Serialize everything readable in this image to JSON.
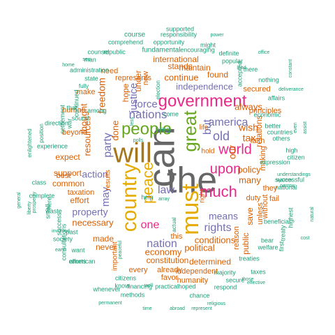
{
  "palette": {
    "green": "#1b9e77",
    "orange": "#d95f02",
    "purple": "#7570b3",
    "pink": "#e7298a",
    "lime": "#66a61e",
    "gold": "#e6ab02",
    "brown": "#a6761d",
    "gray": "#666666"
  },
  "words": [
    {
      "text": "the",
      "weight": 10,
      "color": "gray"
    },
    {
      "text": "can",
      "weight": 10,
      "color": "gray"
    },
    {
      "text": "will",
      "weight": 9,
      "color": "brown"
    },
    {
      "text": "must",
      "weight": 8,
      "color": "gold"
    },
    {
      "text": "country",
      "weight": 8,
      "color": "gold"
    },
    {
      "text": "great",
      "weight": 7,
      "color": "lime"
    },
    {
      "text": "government",
      "weight": 7,
      "color": "pink"
    },
    {
      "text": "people",
      "weight": 7,
      "color": "lime"
    },
    {
      "text": "peace",
      "weight": 6,
      "color": "gold"
    },
    {
      "text": "much",
      "weight": 6,
      "color": "pink"
    },
    {
      "text": "upon",
      "weight": 6,
      "color": "pink"
    },
    {
      "text": "world",
      "weight": 6,
      "color": "pink"
    },
    {
      "text": "nations",
      "weight": 5,
      "color": "purple"
    },
    {
      "text": "america",
      "weight": 5,
      "color": "purple"
    },
    {
      "text": "law",
      "weight": 5,
      "color": "purple"
    },
    {
      "text": "one",
      "weight": 5,
      "color": "pink"
    },
    {
      "text": "rights",
      "weight": 5,
      "color": "purple"
    },
    {
      "text": "old",
      "weight": 5,
      "color": "purple"
    },
    {
      "text": "nation",
      "weight": 5,
      "color": "purple"
    },
    {
      "text": "but",
      "weight": 5,
      "color": "purple"
    },
    {
      "text": "party",
      "weight": 4,
      "color": "purple"
    },
    {
      "text": "justice",
      "weight": 4,
      "color": "purple"
    },
    {
      "text": "force",
      "weight": 4,
      "color": "purple"
    },
    {
      "text": "may",
      "weight": 4,
      "color": "purple"
    },
    {
      "text": "property",
      "weight": 4,
      "color": "purple"
    },
    {
      "text": "independence",
      "weight": 4,
      "color": "purple"
    },
    {
      "text": "action",
      "weight": 4,
      "color": "purple"
    },
    {
      "text": "means",
      "weight": 4,
      "color": "purple"
    },
    {
      "text": "wish",
      "weight": 4,
      "color": "orange"
    },
    {
      "text": "our",
      "weight": 4,
      "color": "orange"
    },
    {
      "text": "policy",
      "weight": 4,
      "color": "orange"
    },
    {
      "text": "thought",
      "weight": 4,
      "color": "orange"
    },
    {
      "text": "freedom",
      "weight": 4,
      "color": "orange"
    },
    {
      "text": "continue",
      "weight": 4,
      "color": "orange"
    },
    {
      "text": "necessary",
      "weight": 4,
      "color": "orange"
    },
    {
      "text": "political",
      "weight": 4,
      "color": "orange"
    },
    {
      "text": "conditions",
      "weight": 4,
      "color": "orange"
    },
    {
      "text": "economy",
      "weight": 4,
      "color": "orange"
    },
    {
      "text": "resources",
      "weight": 4,
      "color": "orange"
    },
    {
      "text": "always",
      "weight": 4,
      "color": "orange"
    },
    {
      "text": "many",
      "weight": 4,
      "color": "orange"
    },
    {
      "text": "tax",
      "weight": 4,
      "color": "orange"
    },
    {
      "text": "done",
      "weight": 4,
      "color": "orange"
    },
    {
      "text": "made",
      "weight": 3,
      "color": "orange"
    },
    {
      "text": "international",
      "weight": 3,
      "color": "orange"
    },
    {
      "text": "stands",
      "weight": 3,
      "color": "orange"
    },
    {
      "text": "maintain",
      "weight": 3,
      "color": "orange"
    },
    {
      "text": "found",
      "weight": 3,
      "color": "orange"
    },
    {
      "text": "represents",
      "weight": 3,
      "color": "orange"
    },
    {
      "text": "secured",
      "weight": 3,
      "color": "orange"
    },
    {
      "text": "support",
      "weight": 3,
      "color": "orange"
    },
    {
      "text": "expect",
      "weight": 3,
      "color": "orange"
    },
    {
      "text": "common",
      "weight": 3,
      "color": "orange"
    },
    {
      "text": "effort",
      "weight": 3,
      "color": "orange"
    },
    {
      "text": "never",
      "weight": 3,
      "color": "orange"
    },
    {
      "text": "constitution",
      "weight": 3,
      "color": "orange"
    },
    {
      "text": "determined",
      "weight": 3,
      "color": "orange"
    },
    {
      "text": "hope",
      "weight": 3,
      "color": "orange"
    },
    {
      "text": "under",
      "weight": 3,
      "color": "orange"
    },
    {
      "text": "new",
      "weight": 3,
      "color": "orange"
    },
    {
      "text": "save",
      "weight": 3,
      "color": "orange"
    },
    {
      "text": "public",
      "weight": 3,
      "color": "orange"
    },
    {
      "text": "reason",
      "weight": 3,
      "color": "orange"
    },
    {
      "text": "they",
      "weight": 3,
      "color": "orange"
    },
    {
      "text": "duty",
      "weight": 3,
      "color": "orange"
    },
    {
      "text": "fail",
      "weight": 3,
      "color": "orange"
    },
    {
      "text": "without",
      "weight": 3,
      "color": "orange"
    },
    {
      "text": "unless",
      "weight": 3,
      "color": "orange"
    },
    {
      "text": "principles",
      "weight": 3,
      "color": "orange"
    },
    {
      "text": "relations",
      "weight": 3,
      "color": "orange"
    },
    {
      "text": "faith",
      "weight": 3,
      "color": "orange"
    },
    {
      "text": "making",
      "weight": 3,
      "color": "orange"
    },
    {
      "text": "every",
      "weight": 3,
      "color": "orange"
    },
    {
      "text": "already",
      "weight": 3,
      "color": "orange"
    },
    {
      "text": "favor",
      "weight": 3,
      "color": "orange"
    },
    {
      "text": "humanity",
      "weight": 3,
      "color": "orange"
    },
    {
      "text": "independent",
      "weight": 3,
      "color": "orange"
    },
    {
      "text": "important",
      "weight": 3,
      "color": "orange"
    },
    {
      "text": "results",
      "weight": 3,
      "color": "orange"
    },
    {
      "text": "best",
      "weight": 3,
      "color": "orange"
    },
    {
      "text": "taxation",
      "weight": 3,
      "color": "orange"
    },
    {
      "text": "beyond",
      "weight": 3,
      "color": "orange"
    },
    {
      "text": "human",
      "weight": 3,
      "color": "orange"
    },
    {
      "text": "make",
      "weight": 3,
      "color": "orange"
    },
    {
      "text": "need",
      "weight": 3,
      "color": "orange"
    },
    {
      "text": "right",
      "weight": 3,
      "color": "orange"
    },
    {
      "text": "life",
      "weight": 3,
      "color": "orange"
    },
    {
      "text": "hold",
      "weight": 3,
      "color": "orange"
    },
    {
      "text": "this",
      "weight": 3,
      "color": "orange"
    },
    {
      "text": "course",
      "weight": 2,
      "color": "green"
    },
    {
      "text": "supported",
      "weight": 2,
      "color": "green"
    },
    {
      "text": "responsibility",
      "weight": 2,
      "color": "green"
    },
    {
      "text": "power",
      "weight": 2,
      "color": "green"
    },
    {
      "text": "comprehend",
      "weight": 1,
      "color": "green"
    },
    {
      "text": "opportunity",
      "weight": 2,
      "color": "green"
    },
    {
      "text": "might",
      "weight": 2,
      "color": "green"
    },
    {
      "text": "fundamental",
      "weight": 2,
      "color": "green"
    },
    {
      "text": "encouraging",
      "weight": 2,
      "color": "green"
    },
    {
      "text": "definite",
      "weight": 2,
      "color": "green"
    },
    {
      "text": "popular",
      "weight": 2,
      "color": "green"
    },
    {
      "text": "counsel",
      "weight": 2,
      "color": "green"
    },
    {
      "text": "republic",
      "weight": 2,
      "color": "green"
    },
    {
      "text": "man",
      "weight": 2,
      "color": "green"
    },
    {
      "text": "administration",
      "weight": 2,
      "color": "green"
    },
    {
      "text": "state",
      "weight": 2,
      "color": "green"
    },
    {
      "text": "fully",
      "weight": 2,
      "color": "green"
    },
    {
      "text": "home",
      "weight": 2,
      "color": "green"
    },
    {
      "text": "sea",
      "weight": 1,
      "color": "green"
    },
    {
      "text": "continued",
      "weight": 1,
      "color": "green"
    },
    {
      "text": "settlement",
      "weight": 2,
      "color": "green"
    },
    {
      "text": "sound",
      "weight": 2,
      "color": "green"
    },
    {
      "text": "among",
      "weight": 2,
      "color": "green"
    },
    {
      "text": "that",
      "weight": 2,
      "color": "green"
    },
    {
      "text": "war",
      "weight": 2,
      "color": "green"
    },
    {
      "text": "direction",
      "weight": 2,
      "color": "green"
    },
    {
      "text": "position",
      "weight": 2,
      "color": "green"
    },
    {
      "text": "enlightened",
      "weight": 2,
      "color": "green"
    },
    {
      "text": "experience",
      "weight": 2,
      "color": "green"
    },
    {
      "text": "class",
      "weight": 1,
      "color": "green"
    },
    {
      "text": "complete",
      "weight": 1,
      "color": "green"
    },
    {
      "text": "here",
      "weight": 2,
      "color": "green"
    },
    {
      "text": "small",
      "weight": 2,
      "color": "green"
    },
    {
      "text": "waste",
      "weight": 2,
      "color": "green"
    },
    {
      "text": "liberty",
      "weight": 2,
      "color": "green"
    },
    {
      "text": "prosperity",
      "weight": 2,
      "color": "green"
    },
    {
      "text": "general",
      "weight": 2,
      "color": "green"
    },
    {
      "text": "success",
      "weight": 1,
      "color": "green"
    },
    {
      "text": "involved",
      "weight": 1,
      "color": "green"
    },
    {
      "text": "consultations",
      "weight": 1,
      "color": "green"
    },
    {
      "text": "society",
      "weight": 2,
      "color": "green"
    },
    {
      "text": "earth",
      "weight": 1,
      "color": "green"
    },
    {
      "text": "past",
      "weight": 2,
      "color": "green"
    },
    {
      "text": "want",
      "weight": 2,
      "color": "green"
    },
    {
      "text": "efforts",
      "weight": 1,
      "color": "green"
    },
    {
      "text": "american",
      "weight": 2,
      "color": "green"
    },
    {
      "text": "peaceful",
      "weight": 2,
      "color": "green"
    },
    {
      "text": "whenever",
      "weight": 2,
      "color": "green"
    },
    {
      "text": "know",
      "weight": 2,
      "color": "green"
    },
    {
      "text": "citizens",
      "weight": 1,
      "color": "green"
    },
    {
      "text": "permanent",
      "weight": 2,
      "color": "green"
    },
    {
      "text": "methods",
      "weight": 2,
      "color": "green"
    },
    {
      "text": "well",
      "weight": 2,
      "color": "green"
    },
    {
      "text": "financing",
      "weight": 1,
      "color": "green"
    },
    {
      "text": "practical",
      "weight": 2,
      "color": "green"
    },
    {
      "text": "hoped",
      "weight": 1,
      "color": "green"
    },
    {
      "text": "time",
      "weight": 2,
      "color": "green"
    },
    {
      "text": "abroad",
      "weight": 2,
      "color": "green"
    },
    {
      "text": "chance",
      "weight": 2,
      "color": "green"
    },
    {
      "text": "religious",
      "weight": 2,
      "color": "green"
    },
    {
      "text": "represent",
      "weight": 1,
      "color": "green"
    },
    {
      "text": "respond",
      "weight": 1,
      "color": "green"
    },
    {
      "text": "secure",
      "weight": 2,
      "color": "green"
    },
    {
      "text": "majority",
      "weight": 1,
      "color": "green"
    },
    {
      "text": "treaties",
      "weight": 1,
      "color": "green"
    },
    {
      "text": "taxes",
      "weight": 2,
      "color": "green"
    },
    {
      "text": "those",
      "weight": 2,
      "color": "green"
    },
    {
      "text": "effective",
      "weight": 2,
      "color": "green"
    },
    {
      "text": "bear",
      "weight": 2,
      "color": "green"
    },
    {
      "text": "welfare",
      "weight": 2,
      "color": "green"
    },
    {
      "text": "treaty",
      "weight": 1,
      "color": "green"
    },
    {
      "text": "highest",
      "weight": 1,
      "color": "green"
    },
    {
      "text": "cost",
      "weight": 2,
      "color": "green"
    },
    {
      "text": "natural",
      "weight": 2,
      "color": "green"
    },
    {
      "text": "national",
      "weight": 2,
      "color": "green"
    },
    {
      "text": "system",
      "weight": 2,
      "color": "green"
    },
    {
      "text": "successful",
      "weight": 1,
      "color": "green"
    },
    {
      "text": "understandings",
      "weight": 1,
      "color": "green"
    },
    {
      "text": "narrow",
      "weight": 2,
      "color": "green"
    },
    {
      "text": "citizen",
      "weight": 1,
      "color": "green"
    },
    {
      "text": "high",
      "weight": 2,
      "color": "green"
    },
    {
      "text": "beneficial",
      "weight": 1,
      "color": "green"
    },
    {
      "text": "first",
      "weight": 1,
      "color": "green"
    },
    {
      "text": "expression",
      "weight": 2,
      "color": "green"
    },
    {
      "text": "others",
      "weight": 2,
      "color": "green"
    },
    {
      "text": "better",
      "weight": 2,
      "color": "green"
    },
    {
      "text": "countries",
      "weight": 2,
      "color": "green"
    },
    {
      "text": "assist",
      "weight": 2,
      "color": "green"
    },
    {
      "text": "even",
      "weight": 2,
      "color": "green"
    },
    {
      "text": "economic",
      "weight": 2,
      "color": "green"
    },
    {
      "text": "affairs",
      "weight": 2,
      "color": "green"
    },
    {
      "text": "deliverance",
      "weight": 1,
      "color": "green"
    },
    {
      "text": "nothing",
      "weight": 1,
      "color": "green"
    },
    {
      "text": "there",
      "weight": 2,
      "color": "green"
    },
    {
      "text": "constant",
      "weight": 2,
      "color": "green"
    },
    {
      "text": "accepted",
      "weight": 1,
      "color": "green"
    },
    {
      "text": "lead",
      "weight": 2,
      "color": "green"
    },
    {
      "text": "office",
      "weight": 2,
      "color": "green"
    },
    {
      "text": "election",
      "weight": 1,
      "color": "green"
    },
    {
      "text": "come",
      "weight": 2,
      "color": "green"
    },
    {
      "text": "living",
      "weight": 1,
      "color": "green"
    },
    {
      "text": "polls",
      "weight": 1,
      "color": "green"
    },
    {
      "text": "less",
      "weight": 2,
      "color": "green"
    },
    {
      "text": "help",
      "weight": 2,
      "color": "green"
    },
    {
      "text": "array",
      "weight": 2,
      "color": "green"
    },
    {
      "text": "actual",
      "weight": 1,
      "color": "green"
    },
    {
      "text": "relief",
      "weight": 1,
      "color": "green"
    },
    {
      "text": "true",
      "weight": 2,
      "color": "green"
    },
    {
      "text": "divine",
      "weight": 1,
      "color": "green"
    },
    {
      "text": "little",
      "weight": 2,
      "color": "green"
    }
  ]
}
